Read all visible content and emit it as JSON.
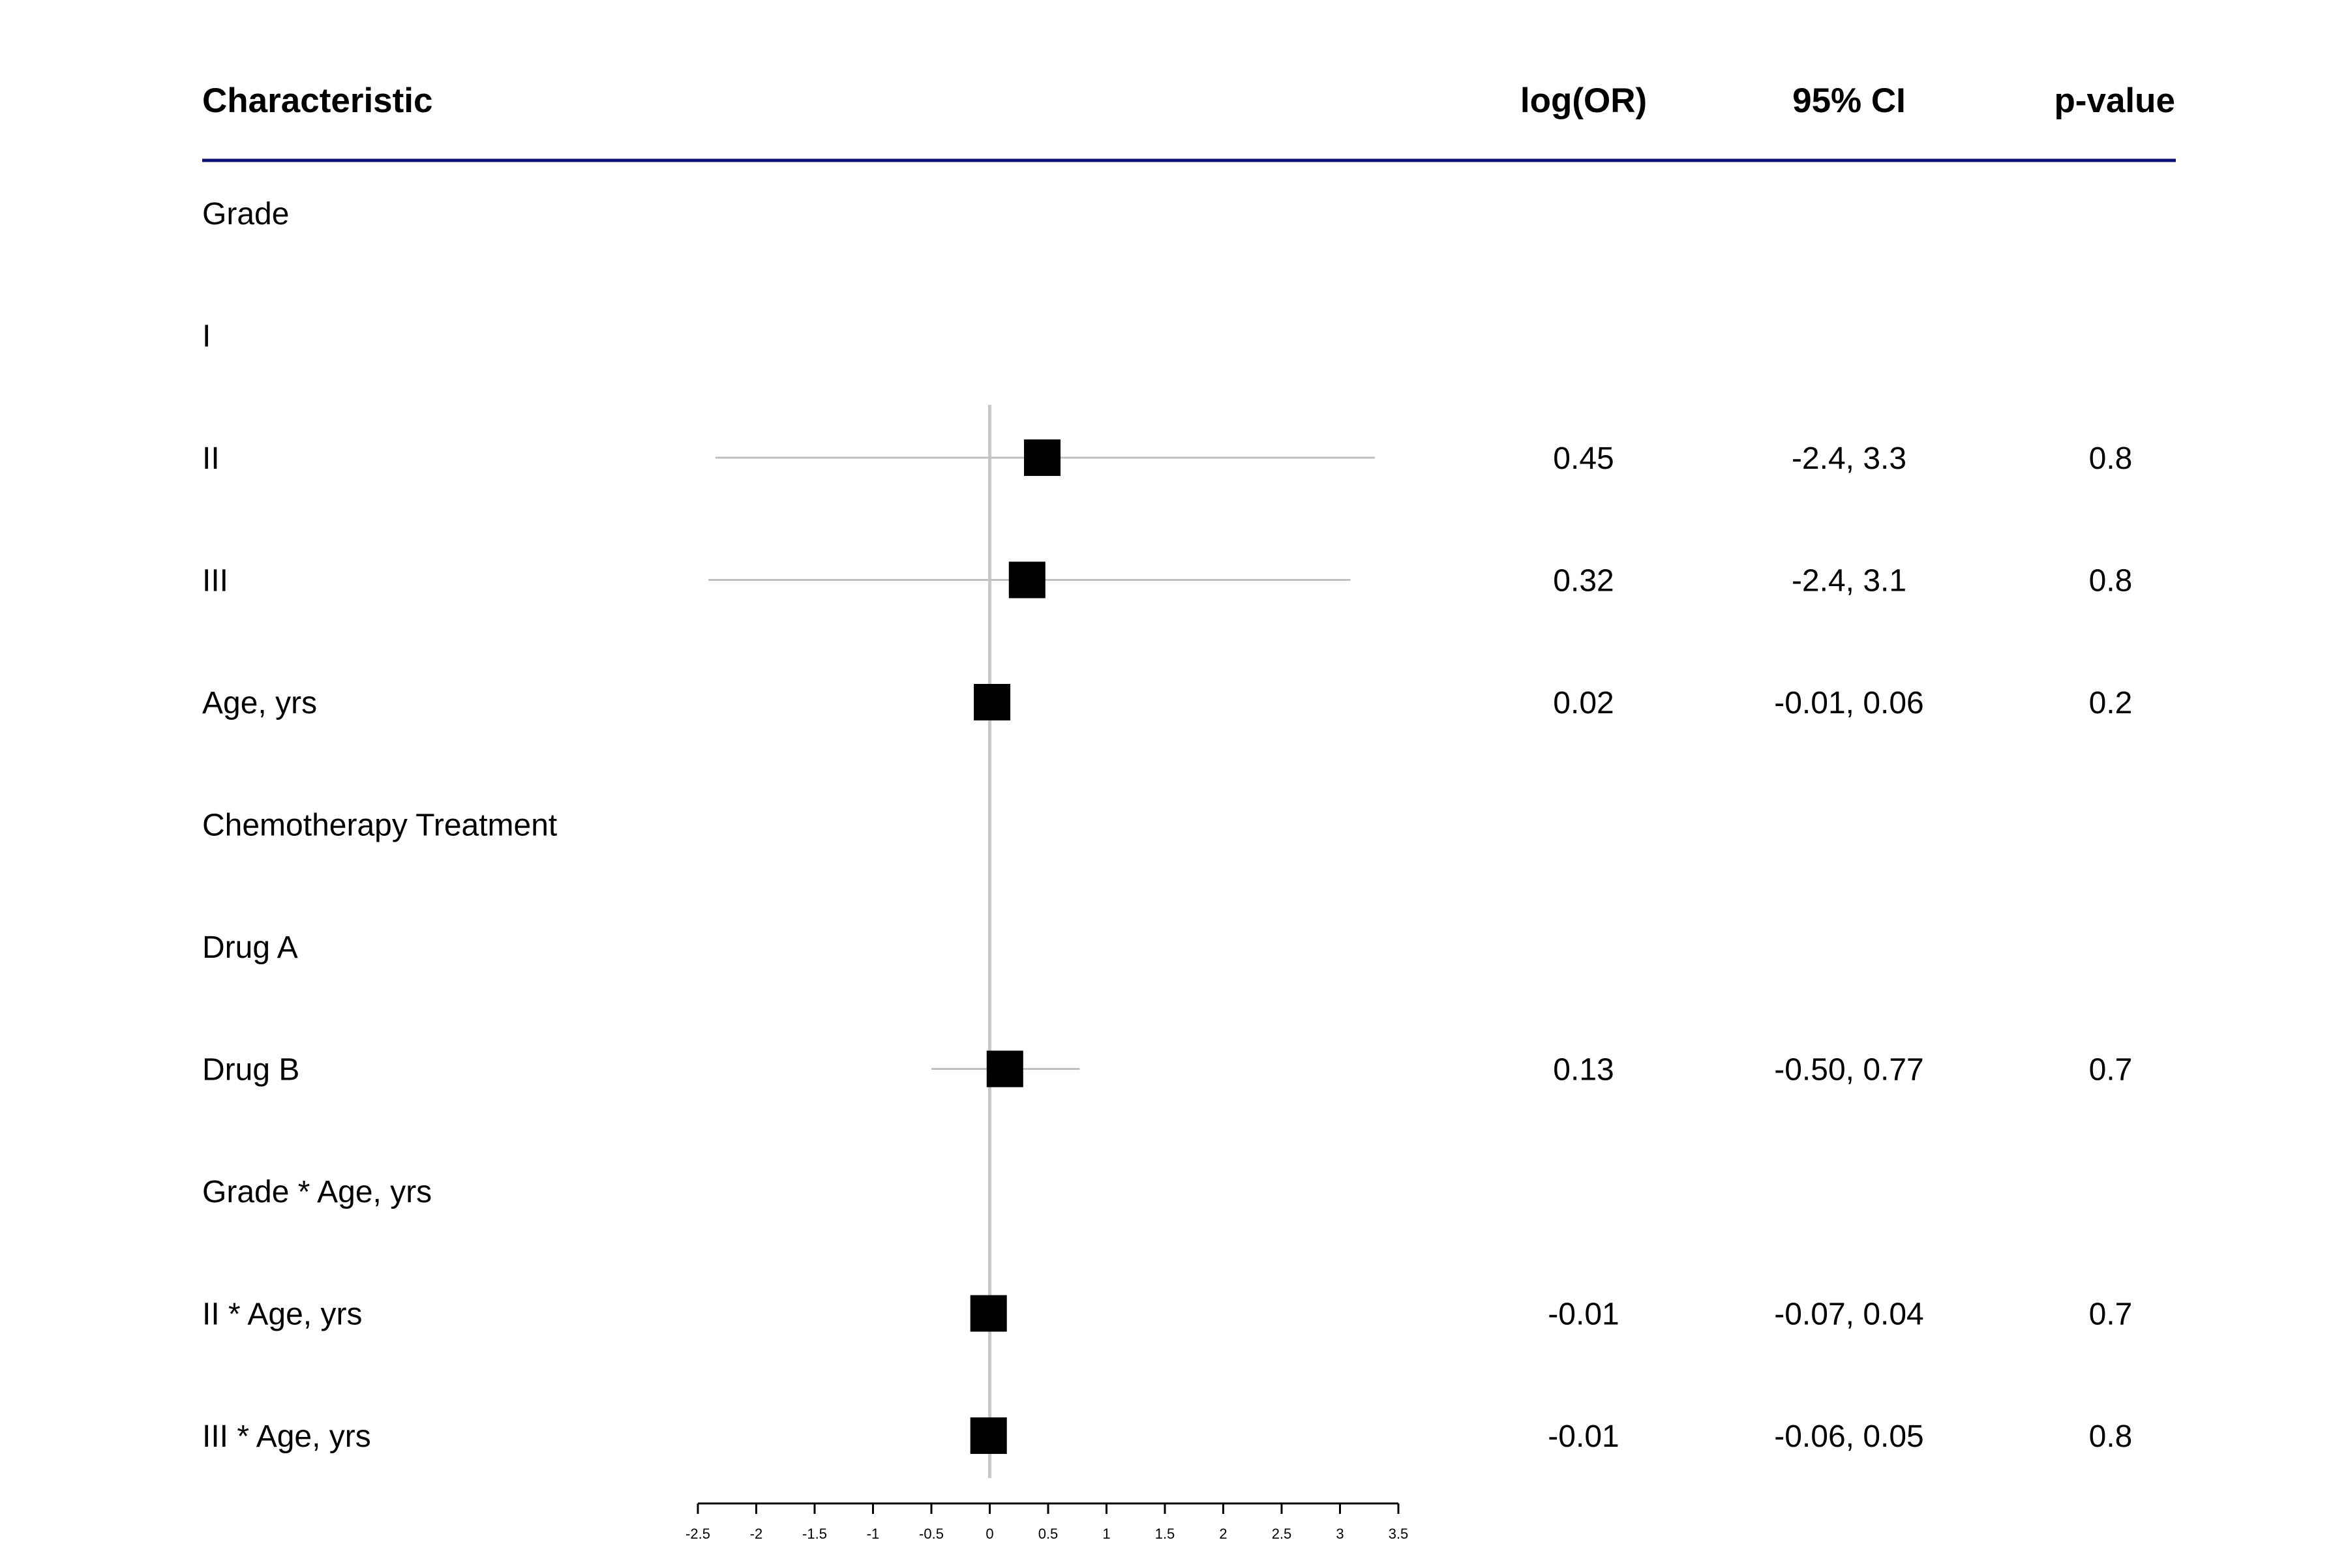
{
  "chart_data": {
    "type": "forest",
    "headers": {
      "label": "Characteristic",
      "estimate": "log(OR)",
      "ci": "95% CI",
      "p": "p-value"
    },
    "xlim": [
      -2.5,
      3.5
    ],
    "x_ticks": [
      "-2.5",
      "-2",
      "-1.5",
      "-1",
      "-0.5",
      "0",
      "0.5",
      "1",
      "1.5",
      "2",
      "2.5",
      "3",
      "3.5"
    ],
    "reference_line": 0,
    "rows": [
      {
        "label": "Grade",
        "estimate": null,
        "lower": null,
        "upper": null,
        "est_text": "",
        "ci_text": "",
        "p_text": ""
      },
      {
        "label": "I",
        "estimate": null,
        "lower": null,
        "upper": null,
        "est_text": "",
        "ci_text": "",
        "p_text": ""
      },
      {
        "label": "II",
        "estimate": 0.45,
        "lower": -2.35,
        "upper": 3.3,
        "est_text": "0.45",
        "ci_text": "-2.4, 3.3",
        "p_text": "0.8"
      },
      {
        "label": "III",
        "estimate": 0.32,
        "lower": -2.41,
        "upper": 3.09,
        "est_text": "0.32",
        "ci_text": "-2.4, 3.1",
        "p_text": "0.8"
      },
      {
        "label": "Age, yrs",
        "estimate": 0.02,
        "lower": -0.01,
        "upper": 0.06,
        "est_text": "0.02",
        "ci_text": "-0.01, 0.06",
        "p_text": "0.2"
      },
      {
        "label": "Chemotherapy Treatment",
        "estimate": null,
        "lower": null,
        "upper": null,
        "est_text": "",
        "ci_text": "",
        "p_text": ""
      },
      {
        "label": "Drug A",
        "estimate": null,
        "lower": null,
        "upper": null,
        "est_text": "",
        "ci_text": "",
        "p_text": ""
      },
      {
        "label": "Drug B",
        "estimate": 0.13,
        "lower": -0.5,
        "upper": 0.77,
        "est_text": "0.13",
        "ci_text": "-0.50, 0.77",
        "p_text": "0.7"
      },
      {
        "label": "Grade * Age, yrs",
        "estimate": null,
        "lower": null,
        "upper": null,
        "est_text": "",
        "ci_text": "",
        "p_text": ""
      },
      {
        "label": "II * Age, yrs",
        "estimate": -0.01,
        "lower": -0.07,
        "upper": 0.04,
        "est_text": "-0.01",
        "ci_text": "-0.07, 0.04",
        "p_text": "0.7"
      },
      {
        "label": "III * Age, yrs",
        "estimate": -0.01,
        "lower": -0.06,
        "upper": 0.05,
        "est_text": "-0.01",
        "ci_text": "-0.06, 0.05",
        "p_text": "0.8"
      }
    ],
    "colors": {
      "header_rule": "#0a1172",
      "ci_line": "#c0c0c0",
      "reference_line": "#c8c8c8",
      "marker": "#000000",
      "axis": "#000000"
    }
  }
}
